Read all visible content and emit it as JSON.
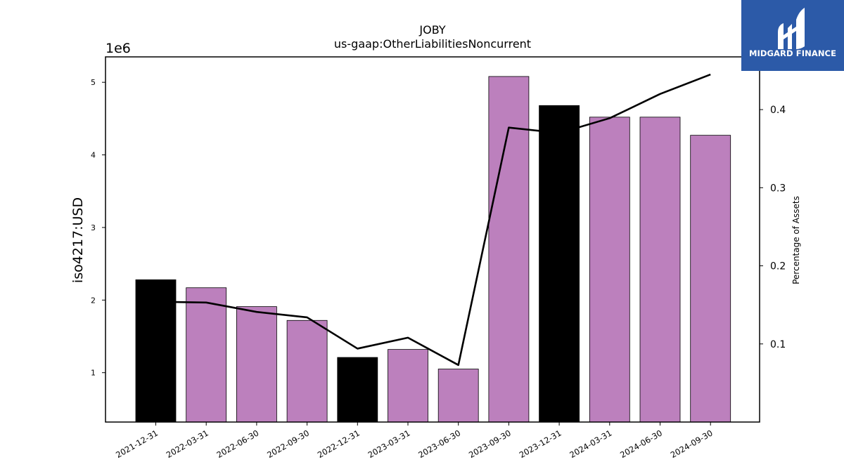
{
  "chart_data": {
    "type": "bar",
    "title": "JOBY",
    "subtitle": "us-gaap:OtherLiabilitiesNoncurrent",
    "ylabel": "iso4217:USD",
    "y_offset_label": "1e6",
    "y2label": "Percentage of Assets",
    "categories": [
      "2021-12-31",
      "2022-03-31",
      "2022-06-30",
      "2022-09-30",
      "2022-12-31",
      "2023-03-31",
      "2023-06-30",
      "2023-09-30",
      "2023-12-31",
      "2024-03-31",
      "2024-06-30",
      "2024-09-30"
    ],
    "values": [
      2280000,
      2170000,
      1910000,
      1720000,
      1210000,
      1320000,
      1050000,
      5080000,
      4680000,
      4520000,
      4520000,
      4270000
    ],
    "bar_colors": [
      "#000000",
      "#bc80bd",
      "#bc80bd",
      "#bc80bd",
      "#000000",
      "#bc80bd",
      "#bc80bd",
      "#bc80bd",
      "#000000",
      "#bc80bd",
      "#bc80bd",
      "#bc80bd"
    ],
    "ylim": [
      320000,
      5350000
    ],
    "yticks": [
      1,
      2,
      3,
      4,
      5
    ],
    "line_series": {
      "name": "Percentage of Assets",
      "values": [
        0.154,
        0.153,
        0.141,
        0.134,
        0.094,
        0.108,
        0.073,
        0.377,
        0.37,
        0.389,
        0.42,
        0.445
      ],
      "color": "#000000"
    },
    "y2lim": [
      0.0,
      0.4675
    ],
    "y2ticks": [
      "0.1",
      "0.2",
      "0.3",
      "0.4"
    ],
    "grid": false,
    "legend": "none"
  },
  "logo": {
    "text": "MIDGARD FINANCE",
    "color": "#2c5aa8"
  }
}
